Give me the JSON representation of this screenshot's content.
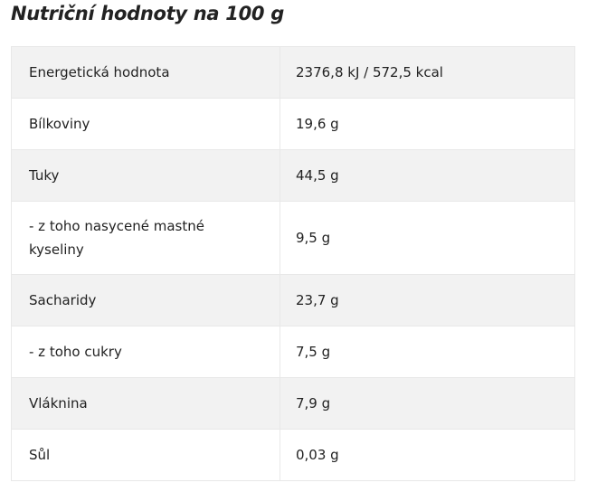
{
  "title": "Nutriční hodnoty na 100 g",
  "table": {
    "rows": [
      [
        "Energetická hodnota",
        "2376,8 kJ / 572,5 kcal"
      ],
      [
        "Bílkoviny",
        "19,6 g"
      ],
      [
        "Tuky",
        "44,5 g"
      ],
      [
        "- z toho nasycené mastné kyseliny",
        "9,5 g"
      ],
      [
        "Sacharidy",
        "23,7 g"
      ],
      [
        "- z toho cukry",
        "7,5 g"
      ],
      [
        "Vláknina",
        "7,9 g"
      ],
      [
        "Sůl",
        "0,03 g"
      ]
    ]
  }
}
